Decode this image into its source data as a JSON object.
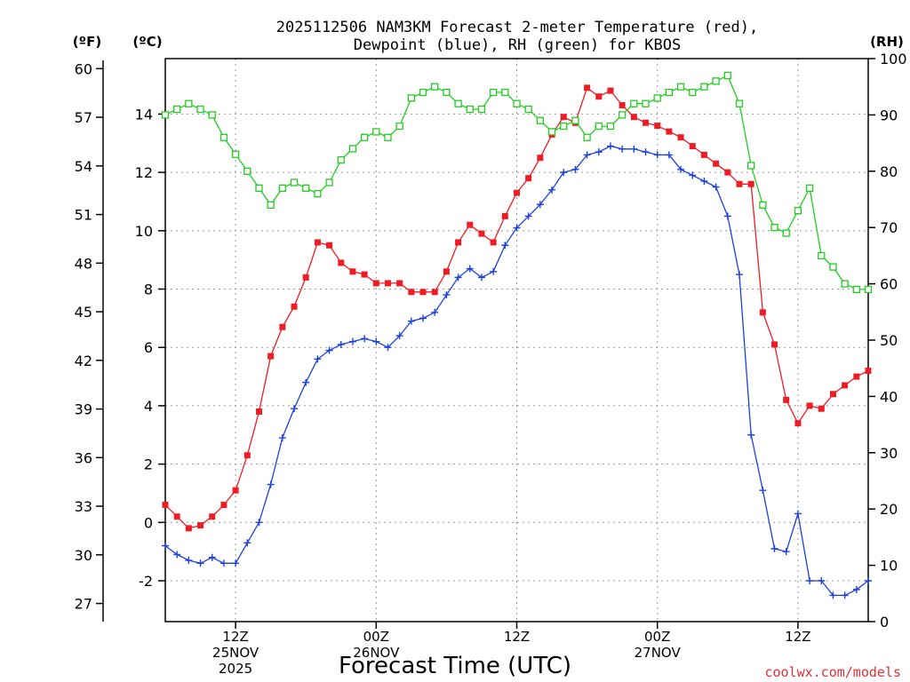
{
  "chart_data": {
    "type": "line",
    "title_line1": "2025112506 NAM3KM Forecast 2-meter Temperature (red),",
    "title_line2": "Dewpoint (blue), RH (green) for KBOS",
    "xlabel": "Forecast Time (UTC)",
    "unit_f": "(ºF)",
    "unit_c": "(ºC)",
    "unit_rh": "(RH)",
    "credit": "coolwx.com/models",
    "ylim_c": [
      -3.4,
      15.9
    ],
    "ylim_rh": [
      0,
      100
    ],
    "x_range_hours": [
      0,
      60
    ],
    "c_ticks": [
      "-2",
      "0",
      "2",
      "4",
      "6",
      "8",
      "10",
      "12",
      "14"
    ],
    "f_ticks": [
      "27",
      "30",
      "33",
      "36",
      "39",
      "42",
      "45",
      "48",
      "51",
      "54",
      "57",
      "60"
    ],
    "rh_ticks": [
      "0",
      "10",
      "20",
      "30",
      "40",
      "50",
      "60",
      "70",
      "80",
      "90",
      "100"
    ],
    "x_ticks": [
      {
        "hour": 6,
        "label": "12Z",
        "date": "25NOV",
        "year": "2025"
      },
      {
        "hour": 18,
        "label": "00Z",
        "date": "26NOV",
        "year": ""
      },
      {
        "hour": 30,
        "label": "12Z",
        "date": "",
        "year": ""
      },
      {
        "hour": 42,
        "label": "00Z",
        "date": "27NOV",
        "year": ""
      },
      {
        "hour": 54,
        "label": "12Z",
        "date": "",
        "year": ""
      }
    ],
    "series": [
      {
        "name": "Temperature",
        "units": "C",
        "color": "#ee1c24",
        "marker": "filled-square",
        "values": [
          0.6,
          0.2,
          -0.2,
          -0.1,
          0.2,
          0.6,
          1.1,
          2.3,
          3.8,
          5.7,
          6.7,
          7.4,
          8.4,
          9.6,
          9.5,
          8.9,
          8.6,
          8.5,
          8.2,
          8.2,
          8.2,
          7.9,
          7.9,
          7.9,
          8.6,
          9.6,
          10.2,
          9.9,
          9.6,
          10.5,
          11.3,
          11.8,
          12.5,
          13.3,
          13.9,
          13.7,
          14.9,
          14.6,
          14.8,
          14.3,
          13.9,
          13.7,
          13.6,
          13.4,
          13.2,
          12.9,
          12.6,
          12.3,
          12.0,
          11.6,
          11.6,
          7.2,
          6.1,
          4.2,
          3.4,
          4.0,
          3.9,
          4.4,
          4.7,
          5.0,
          5.2
        ]
      },
      {
        "name": "Dewpoint",
        "units": "C",
        "color": "#1c3fe0",
        "marker": "plus",
        "values": [
          -0.8,
          -1.1,
          -1.3,
          -1.4,
          -1.2,
          -1.4,
          -1.4,
          -0.7,
          0.0,
          1.3,
          2.9,
          3.9,
          4.8,
          5.6,
          5.9,
          6.1,
          6.2,
          6.3,
          6.2,
          6.0,
          6.4,
          6.9,
          7.0,
          7.2,
          7.8,
          8.4,
          8.7,
          8.4,
          8.6,
          9.5,
          10.1,
          10.5,
          10.9,
          11.4,
          12.0,
          12.1,
          12.6,
          12.7,
          12.9,
          12.8,
          12.8,
          12.7,
          12.6,
          12.6,
          12.1,
          11.9,
          11.7,
          11.5,
          10.5,
          8.5,
          3.0,
          1.1,
          -0.9,
          -1.0,
          0.3,
          -2.0,
          -2.0,
          -2.5,
          -2.5,
          -2.3,
          -2.0
        ]
      },
      {
        "name": "RH",
        "units": "%",
        "color": "#22cc22",
        "marker": "open-square",
        "values": [
          90,
          91,
          92,
          91,
          90,
          86,
          83,
          80,
          77,
          74,
          77,
          78,
          77,
          76,
          78,
          82,
          84,
          86,
          87,
          86,
          88,
          93,
          94,
          95,
          94,
          92,
          91,
          91,
          94,
          94,
          92,
          91,
          89,
          87,
          88,
          89,
          86,
          88,
          88,
          90,
          92,
          92,
          93,
          94,
          95,
          94,
          95,
          96,
          97,
          92,
          81,
          74,
          70,
          69,
          73,
          77,
          65,
          63,
          60,
          59,
          59
        ]
      }
    ]
  }
}
